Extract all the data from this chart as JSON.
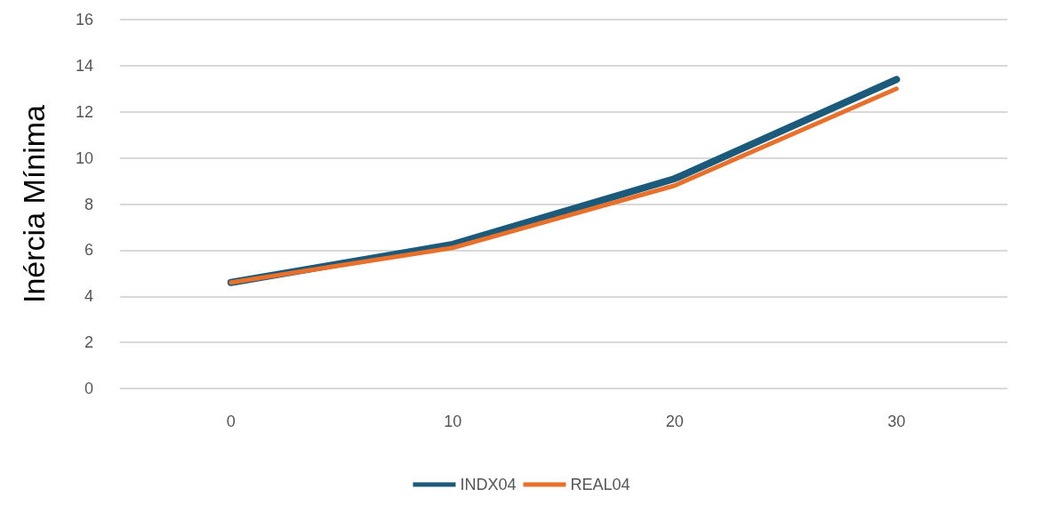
{
  "chart_data": {
    "type": "line",
    "ylabel": "Inércia Mínima",
    "categories": [
      "0",
      "10",
      "20",
      "30"
    ],
    "series": [
      {
        "name": "INDX04",
        "color": "#1b5a7a",
        "values": [
          4.6,
          6.25,
          9.1,
          13.4
        ]
      },
      {
        "name": "REAL04",
        "color": "#e8702a",
        "values": [
          4.6,
          6.1,
          8.8,
          13.0
        ]
      }
    ],
    "ylim": [
      0,
      16
    ],
    "yticks": [
      0,
      2,
      4,
      6,
      8,
      10,
      12,
      14,
      16
    ],
    "grid": "y",
    "legend": "bottom",
    "marker": "none",
    "line_style": "solid"
  }
}
